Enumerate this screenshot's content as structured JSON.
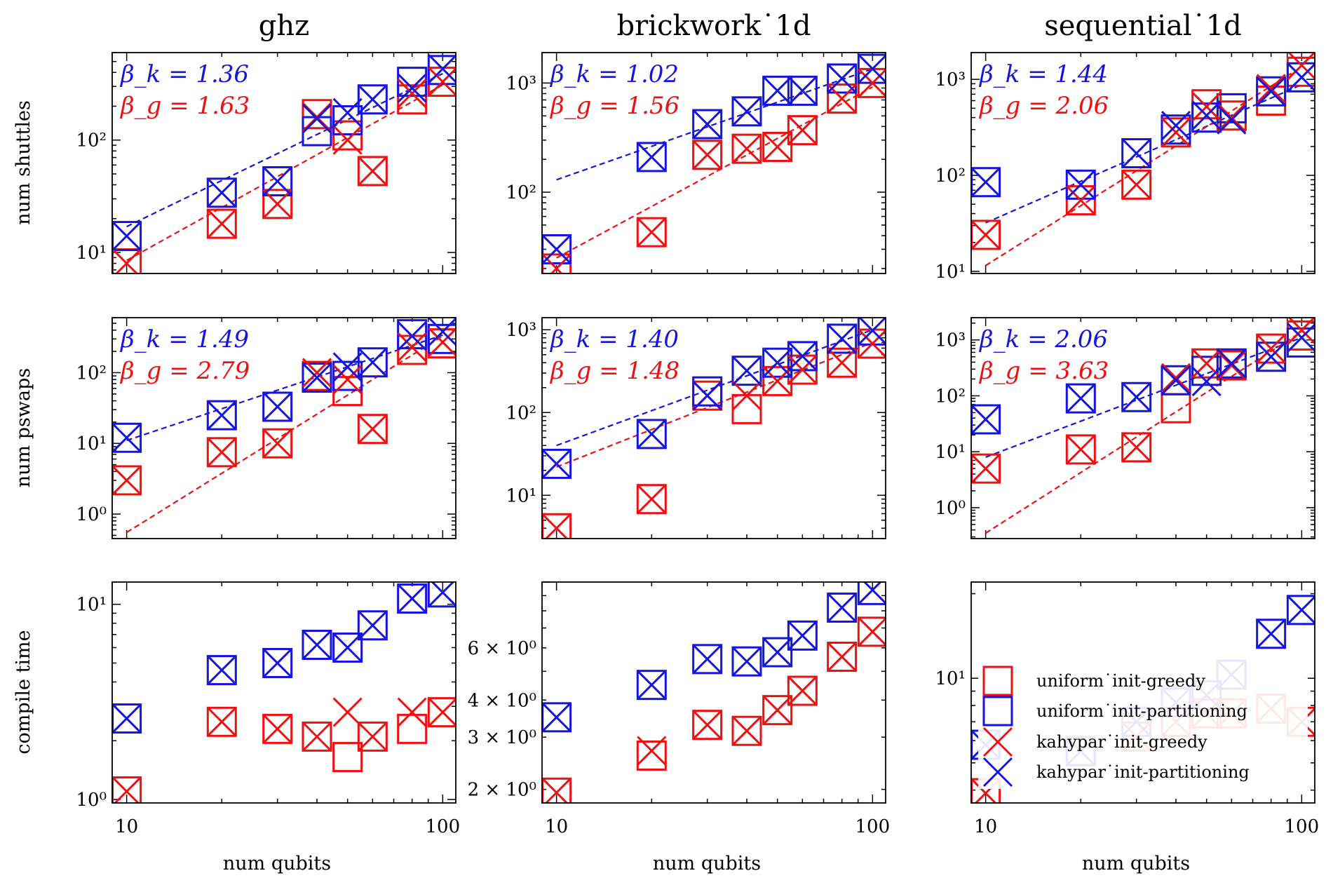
{
  "figure": {
    "column_titles": [
      "ghz",
      "brickwork˙1d",
      "sequential˙1d"
    ],
    "row_ylabels": [
      "num shuttles",
      "num pswaps",
      "compile time"
    ],
    "xlabel": "num qubits",
    "x_ticks": [
      {
        "v": 10,
        "label": "10"
      },
      {
        "v": 100,
        "label": "100"
      }
    ]
  },
  "legend": {
    "entries": [
      {
        "label": "uniform˙init-greedy",
        "marker": "square",
        "color": "#ee1111"
      },
      {
        "label": "uniform˙init-partitioning",
        "marker": "square",
        "color": "#1515dd"
      },
      {
        "label": "kahypar˙init-greedy",
        "marker": "x",
        "color": "#ee1111"
      },
      {
        "label": "kahypar˙init-partitioning",
        "marker": "x",
        "color": "#1515dd"
      }
    ]
  },
  "colors": {
    "greedy": "#ee1111",
    "partitioning": "#1515dd"
  },
  "chart_data": [
    {
      "type": "scatter",
      "row": 0,
      "col": 0,
      "scale": "log-log",
      "xlim": [
        9,
        110
      ],
      "ylim": [
        6.5,
        600
      ],
      "y_ticks": [
        {
          "v": 10,
          "label": "10¹"
        },
        {
          "v": 100,
          "label": "10²"
        }
      ],
      "x": [
        10,
        20,
        30,
        40,
        50,
        60,
        80,
        100
      ],
      "series": [
        {
          "name": "uniform˙init-greedy",
          "marker": "square",
          "color": "#ee1111",
          "values": [
            8,
            18,
            27,
            170,
            110,
            53,
            230,
            330
          ]
        },
        {
          "name": "uniform˙init-partitioning",
          "marker": "square",
          "color": "#1515dd",
          "values": [
            14,
            34,
            43,
            120,
            150,
            230,
            330,
            420
          ]
        },
        {
          "name": "kahypar˙init-greedy",
          "marker": "x",
          "color": "#ee1111",
          "values": [
            8,
            18,
            27,
            160,
            100,
            53,
            260,
            330
          ]
        },
        {
          "name": "kahypar˙init-partitioning",
          "marker": "x",
          "color": "#1515dd",
          "values": [
            14,
            34,
            43,
            155,
            175,
            230,
            290,
            430
          ]
        }
      ],
      "fits": [
        {
          "color": "#1515dd",
          "x": [
            10,
            100
          ],
          "y": [
            17,
            390
          ]
        },
        {
          "color": "#ee1111",
          "x": [
            10,
            100
          ],
          "y": [
            8.5,
            310
          ]
        }
      ],
      "annotations": [
        "β_k = 1.36",
        "β_g = 1.63"
      ]
    },
    {
      "type": "scatter",
      "row": 0,
      "col": 1,
      "scale": "log-log",
      "xlim": [
        9,
        110
      ],
      "ylim": [
        18,
        1900
      ],
      "y_ticks": [
        {
          "v": 100,
          "label": "10²"
        },
        {
          "v": 1000,
          "label": "10³"
        }
      ],
      "x": [
        10,
        20,
        30,
        40,
        50,
        60,
        80,
        100
      ],
      "series": [
        {
          "name": "uniform˙init-greedy",
          "marker": "square",
          "color": "#ee1111",
          "values": [
            20,
            43,
            220,
            250,
            260,
            370,
            720,
            1000
          ]
        },
        {
          "name": "uniform˙init-partitioning",
          "marker": "square",
          "color": "#1515dd",
          "values": [
            30,
            210,
            420,
            550,
            850,
            850,
            1100,
            1350
          ]
        },
        {
          "name": "kahypar˙init-greedy",
          "marker": "x",
          "color": "#ee1111",
          "values": [
            20,
            43,
            220,
            250,
            260,
            370,
            720,
            1000
          ]
        },
        {
          "name": "kahypar˙init-partitioning",
          "marker": "x",
          "color": "#1515dd",
          "values": [
            30,
            210,
            420,
            550,
            850,
            850,
            1100,
            1350
          ]
        }
      ],
      "fits": [
        {
          "color": "#1515dd",
          "x": [
            10,
            100
          ],
          "y": [
            130,
            1350
          ]
        },
        {
          "color": "#ee1111",
          "x": [
            10,
            100
          ],
          "y": [
            25,
            920
          ]
        }
      ],
      "annotations": [
        "β_k = 1.02",
        "β_g = 1.56"
      ]
    },
    {
      "type": "scatter",
      "row": 0,
      "col": 2,
      "scale": "log-log",
      "xlim": [
        9,
        110
      ],
      "ylim": [
        9.5,
        1900
      ],
      "y_ticks": [
        {
          "v": 10,
          "label": "10¹"
        },
        {
          "v": 100,
          "label": "10²"
        },
        {
          "v": 1000,
          "label": "10³"
        }
      ],
      "x": [
        10,
        20,
        30,
        40,
        50,
        60,
        80,
        100
      ],
      "series": [
        {
          "name": "uniform˙init-greedy",
          "marker": "square",
          "color": "#ee1111",
          "values": [
            24,
            55,
            80,
            280,
            550,
            420,
            600,
            1200
          ]
        },
        {
          "name": "uniform˙init-partitioning",
          "marker": "square",
          "color": "#1515dd",
          "values": [
            85,
            80,
            170,
            300,
            400,
            500,
            750,
            1050
          ]
        },
        {
          "name": "kahypar˙init-greedy",
          "marker": "x",
          "color": "#ee1111",
          "values": [
            24,
            55,
            80,
            280,
            520,
            400,
            800,
            1400
          ]
        },
        {
          "name": "kahypar˙init-partitioning",
          "marker": "x",
          "color": "#1515dd",
          "values": [
            85,
            80,
            170,
            330,
            420,
            380,
            750,
            1050
          ]
        }
      ],
      "fits": [
        {
          "color": "#1515dd",
          "x": [
            10,
            100
          ],
          "y": [
            32,
            880
          ]
        },
        {
          "color": "#ee1111",
          "x": [
            10,
            100
          ],
          "y": [
            11.5,
            1350
          ]
        }
      ],
      "annotations": [
        "β_k = 1.44",
        "β_g = 2.06"
      ]
    },
    {
      "type": "scatter",
      "row": 1,
      "col": 0,
      "scale": "log-log",
      "xlim": [
        9,
        110
      ],
      "ylim": [
        0.45,
        600
      ],
      "y_ticks": [
        {
          "v": 1,
          "label": "10⁰"
        },
        {
          "v": 10,
          "label": "10¹"
        },
        {
          "v": 100,
          "label": "10²"
        }
      ],
      "x": [
        10,
        20,
        30,
        40,
        50,
        60,
        80,
        100
      ],
      "series": [
        {
          "name": "uniform˙init-greedy",
          "marker": "square",
          "color": "#ee1111",
          "values": [
            3,
            7.5,
            10,
            90,
            55,
            16,
            210,
            260
          ]
        },
        {
          "name": "uniform˙init-partitioning",
          "marker": "square",
          "color": "#1515dd",
          "values": [
            12,
            25,
            33,
            85,
            90,
            140,
            350,
            300
          ]
        },
        {
          "name": "kahypar˙init-greedy",
          "marker": "x",
          "color": "#ee1111",
          "values": [
            3,
            7.5,
            10,
            100,
            80,
            16,
            230,
            270
          ]
        },
        {
          "name": "kahypar˙init-partitioning",
          "marker": "x",
          "color": "#1515dd",
          "values": [
            12,
            25,
            33,
            85,
            120,
            140,
            330,
            380
          ]
        }
      ],
      "fits": [
        {
          "color": "#1515dd",
          "x": [
            10,
            100
          ],
          "y": [
            11,
            340
          ]
        },
        {
          "color": "#ee1111",
          "x": [
            10,
            100
          ],
          "y": [
            0.55,
            330
          ]
        }
      ],
      "annotations": [
        "β_k = 1.49",
        "β_g = 2.79"
      ]
    },
    {
      "type": "scatter",
      "row": 1,
      "col": 1,
      "scale": "log-log",
      "xlim": [
        9,
        110
      ],
      "ylim": [
        3,
        1400
      ],
      "y_ticks": [
        {
          "v": 10,
          "label": "10¹"
        },
        {
          "v": 100,
          "label": "10²"
        },
        {
          "v": 1000,
          "label": "10³"
        }
      ],
      "x": [
        10,
        20,
        30,
        40,
        50,
        60,
        80,
        100
      ],
      "series": [
        {
          "name": "uniform˙init-greedy",
          "marker": "square",
          "color": "#ee1111",
          "values": [
            4,
            9,
            160,
            110,
            240,
            330,
            400,
            680
          ]
        },
        {
          "name": "uniform˙init-partitioning",
          "marker": "square",
          "color": "#1515dd",
          "values": [
            24,
            55,
            180,
            320,
            400,
            480,
            780,
            980
          ]
        },
        {
          "name": "kahypar˙init-greedy",
          "marker": "x",
          "color": "#ee1111",
          "values": [
            4,
            9,
            160,
            160,
            240,
            330,
            400,
            680
          ]
        },
        {
          "name": "kahypar˙init-partitioning",
          "marker": "x",
          "color": "#1515dd",
          "values": [
            24,
            55,
            160,
            320,
            400,
            480,
            780,
            980
          ]
        }
      ],
      "fits": [
        {
          "color": "#1515dd",
          "x": [
            10,
            100
          ],
          "y": [
            40,
            1000
          ]
        },
        {
          "color": "#ee1111",
          "x": [
            10,
            100
          ],
          "y": [
            22,
            700
          ]
        }
      ],
      "annotations": [
        "β_k = 1.40",
        "β_g = 1.48"
      ]
    },
    {
      "type": "scatter",
      "row": 1,
      "col": 2,
      "scale": "log-log",
      "xlim": [
        9,
        110
      ],
      "ylim": [
        0.28,
        2500
      ],
      "y_ticks": [
        {
          "v": 1,
          "label": "10⁰"
        },
        {
          "v": 10,
          "label": "10¹"
        },
        {
          "v": 100,
          "label": "10²"
        },
        {
          "v": 1000,
          "label": "10³"
        }
      ],
      "x": [
        10,
        20,
        30,
        40,
        50,
        60,
        80,
        100
      ],
      "series": [
        {
          "name": "uniform˙init-greedy",
          "marker": "square",
          "color": "#ee1111",
          "values": [
            5,
            11,
            12,
            60,
            380,
            350,
            700,
            1200
          ]
        },
        {
          "name": "uniform˙init-partitioning",
          "marker": "square",
          "color": "#1515dd",
          "values": [
            38,
            90,
            95,
            190,
            280,
            380,
            500,
            900
          ]
        },
        {
          "name": "kahypar˙init-greedy",
          "marker": "x",
          "color": "#ee1111",
          "values": [
            5,
            11,
            12,
            210,
            380,
            350,
            700,
            1500
          ]
        },
        {
          "name": "kahypar˙init-partitioning",
          "marker": "x",
          "color": "#1515dd",
          "values": [
            38,
            90,
            95,
            190,
            180,
            380,
            500,
            1100
          ]
        }
      ],
      "fits": [
        {
          "color": "#1515dd",
          "x": [
            10,
            100
          ],
          "y": [
            8,
            1100
          ]
        },
        {
          "color": "#ee1111",
          "x": [
            10,
            100
          ],
          "y": [
            0.35,
            1400
          ]
        }
      ],
      "annotations": [
        "β_k = 2.06",
        "β_g = 3.63"
      ]
    },
    {
      "type": "scatter",
      "row": 2,
      "col": 0,
      "scale": "log-log",
      "xlim": [
        9,
        110
      ],
      "ylim": [
        0.96,
        13
      ],
      "y_ticks": [
        {
          "v": 1,
          "label": "10⁰"
        },
        {
          "v": 10,
          "label": "10¹"
        }
      ],
      "x": [
        10,
        20,
        30,
        40,
        50,
        60,
        80,
        100
      ],
      "series": [
        {
          "name": "uniform˙init-greedy",
          "marker": "square",
          "color": "#ee1111",
          "values": [
            1.1,
            2.5,
            2.3,
            2.1,
            1.65,
            2.1,
            2.3,
            2.8
          ]
        },
        {
          "name": "uniform˙init-partitioning",
          "marker": "square",
          "color": "#1515dd",
          "values": [
            2.6,
            4.6,
            5.0,
            6.2,
            6.0,
            7.8,
            10.7,
            11.5
          ]
        },
        {
          "name": "kahypar˙init-greedy",
          "marker": "x",
          "color": "#ee1111",
          "values": [
            1.1,
            2.5,
            2.3,
            2.1,
            2.8,
            2.1,
            2.8,
            2.8
          ]
        },
        {
          "name": "kahypar˙init-partitioning",
          "marker": "x",
          "color": "#1515dd",
          "values": [
            2.6,
            4.6,
            5.0,
            6.2,
            6.0,
            7.8,
            10.7,
            11.5
          ]
        }
      ],
      "fits": [],
      "annotations": []
    },
    {
      "type": "scatter",
      "row": 2,
      "col": 1,
      "scale": "log-log",
      "xlim": [
        9,
        110
      ],
      "ylim": [
        1.8,
        10
      ],
      "y_ticks": [
        {
          "v": 2,
          "label": "2 × 10⁰"
        },
        {
          "v": 3,
          "label": "3 × 10⁰"
        },
        {
          "v": 4,
          "label": "4 × 10⁰"
        },
        {
          "v": 6,
          "label": "6 × 10⁰"
        }
      ],
      "x": [
        10,
        20,
        30,
        40,
        50,
        60,
        80,
        100
      ],
      "series": [
        {
          "name": "uniform˙init-greedy",
          "marker": "square",
          "color": "#ee1111",
          "values": [
            1.95,
            2.6,
            3.3,
            3.15,
            3.7,
            4.3,
            5.6,
            6.8
          ]
        },
        {
          "name": "uniform˙init-partitioning",
          "marker": "square",
          "color": "#1515dd",
          "values": [
            3.5,
            4.5,
            5.5,
            5.4,
            5.8,
            6.6,
            8.2,
            9.4
          ]
        },
        {
          "name": "kahypar˙init-greedy",
          "marker": "x",
          "color": "#ee1111",
          "values": [
            1.95,
            2.7,
            3.3,
            3.15,
            3.7,
            4.3,
            5.6,
            6.8
          ]
        },
        {
          "name": "kahypar˙init-partitioning",
          "marker": "x",
          "color": "#1515dd",
          "values": [
            3.5,
            4.5,
            5.5,
            5.4,
            5.8,
            6.6,
            8.2,
            9.4
          ]
        }
      ],
      "fits": [],
      "annotations": []
    },
    {
      "type": "scatter",
      "row": 2,
      "col": 2,
      "scale": "log-log",
      "xlim": [
        9,
        110
      ],
      "ylim": [
        3.6,
        22
      ],
      "y_ticks": [
        {
          "v": 10,
          "label": "10¹"
        }
      ],
      "x": [
        10,
        20,
        30,
        40,
        50,
        60,
        80,
        100
      ],
      "series": [
        {
          "name": "uniform˙init-greedy",
          "marker": "square",
          "color": "#ee1111",
          "values": [
            3.9,
            5.5,
            6.2,
            7.0,
            7.5,
            7.5,
            7.8,
            7.0
          ]
        },
        {
          "name": "uniform˙init-partitioning",
          "marker": "square",
          "color": "#1515dd",
          "values": [
            5.8,
            5.5,
            7.0,
            8.2,
            8.7,
            10.3,
            14.4,
            17.5
          ]
        },
        {
          "name": "kahypar˙init-greedy",
          "marker": "x",
          "color": "#ee1111",
          "values": [
            3.9,
            5.5,
            6.2,
            7.0,
            7.5,
            7.5,
            7.8,
            7.0
          ]
        },
        {
          "name": "kahypar˙init-partitioning",
          "marker": "x",
          "color": "#1515dd",
          "values": [
            5.8,
            5.5,
            7.0,
            8.2,
            8.7,
            10.3,
            14.4,
            17.5
          ]
        }
      ],
      "fits": [],
      "annotations": []
    }
  ]
}
